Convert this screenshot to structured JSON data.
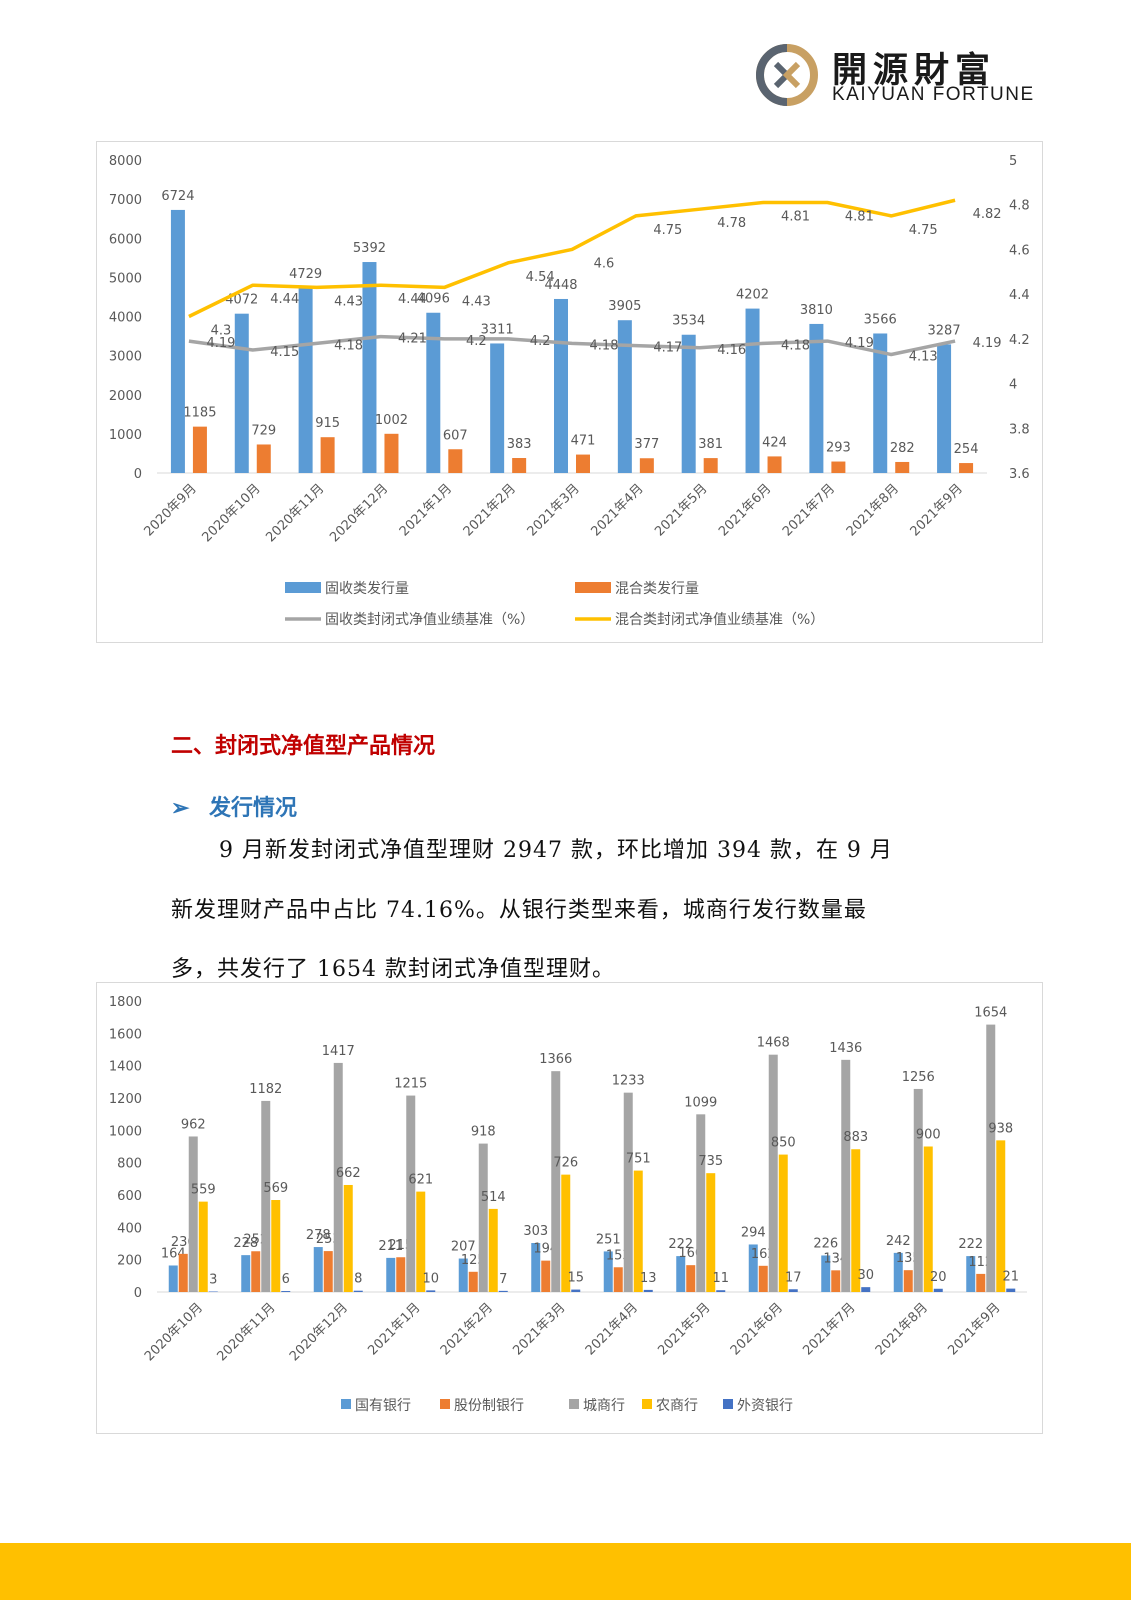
{
  "header": {
    "logo_cn": "開源財富",
    "logo_en": "KAIYUAN FORTUNE",
    "colors": {
      "logo_gold": "#c8a063",
      "logo_gray": "#5a6470"
    }
  },
  "section": {
    "title": "二、封闭式净值型产品情况",
    "subtitle": "发行情况",
    "paragraph_lines": [
      "9 月新发封闭式净值型理财 2947 款，环比增加 394 款，在 9 月",
      "新发理财产品中占比 74.16%。从银行类型来看，城商行发行数量最",
      "多，共发行了 1654 款封闭式净值型理财。"
    ]
  },
  "chart_data": [
    {
      "type": "bar",
      "combo_lines": true,
      "categories": [
        "2020年9月",
        "2020年10月",
        "2020年11月",
        "2020年12月",
        "2021年1月",
        "2021年2月",
        "2021年3月",
        "2021年4月",
        "2021年5月",
        "2021年6月",
        "2021年7月",
        "2021年8月",
        "2021年9月"
      ],
      "series": [
        {
          "name": "固收类发行量",
          "kind": "bar",
          "axis": "left",
          "color": "#5b9bd5",
          "values": [
            6724,
            4072,
            4729,
            5392,
            4096,
            3311,
            4448,
            3905,
            3534,
            4202,
            3810,
            3566,
            3287
          ]
        },
        {
          "name": "混合类发行量",
          "kind": "bar",
          "axis": "left",
          "color": "#ed7d31",
          "values": [
            1185,
            729,
            915,
            1002,
            607,
            383,
            471,
            377,
            381,
            424,
            293,
            282,
            254
          ]
        },
        {
          "name": "固收类封闭式净值业绩基准（%）",
          "kind": "line",
          "axis": "right",
          "color": "#a5a5a5",
          "values": [
            4.19,
            4.15,
            4.18,
            4.21,
            4.2,
            4.2,
            4.18,
            4.17,
            4.16,
            4.18,
            4.19,
            4.13,
            4.19
          ]
        },
        {
          "name": "混合类封闭式净值业绩基准（%）",
          "kind": "line",
          "axis": "right",
          "color": "#ffc000",
          "values": [
            4.3,
            4.44,
            4.43,
            4.44,
            4.43,
            4.54,
            4.6,
            4.75,
            4.78,
            4.81,
            4.81,
            4.75,
            4.82
          ]
        }
      ],
      "ylim": [
        0,
        8000
      ],
      "yticks": [
        "0",
        "1000",
        "2000",
        "3000",
        "4000",
        "5000",
        "6000",
        "7000",
        "8000"
      ],
      "y2lim": [
        3.6,
        5
      ],
      "y2ticks": [
        "3.6",
        "3.8",
        "4",
        "4.2",
        "4.4",
        "4.6",
        "4.8",
        "5"
      ],
      "legend": "bottom",
      "grid": false
    },
    {
      "type": "bar",
      "categories": [
        "2020年10月",
        "2020年11月",
        "2020年12月",
        "2021年1月",
        "2021年2月",
        "2021年3月",
        "2021年4月",
        "2021年5月",
        "2021年6月",
        "2021年7月",
        "2021年8月",
        "2021年9月"
      ],
      "series": [
        {
          "name": "国有银行",
          "color": "#5b9bd5",
          "values": [
            164,
            228,
            278,
            211,
            207,
            303,
            251,
            222,
            294,
            226,
            242,
            222
          ]
        },
        {
          "name": "股份制银行",
          "color": "#ed7d31",
          "values": [
            236,
            252,
            253,
            215,
            125,
            194,
            153,
            166,
            162,
            134,
            135,
            112
          ]
        },
        {
          "name": "城商行",
          "color": "#a5a5a5",
          "values": [
            962,
            1182,
            1417,
            1215,
            918,
            1366,
            1233,
            1099,
            1468,
            1436,
            1256,
            1654
          ]
        },
        {
          "name": "农商行",
          "color": "#ffc000",
          "values": [
            559,
            569,
            662,
            621,
            514,
            726,
            751,
            735,
            850,
            883,
            900,
            938
          ]
        },
        {
          "name": "外资银行",
          "color": "#4472c4",
          "values": [
            3,
            6,
            8,
            10,
            7,
            15,
            13,
            11,
            17,
            30,
            20,
            21
          ]
        }
      ],
      "ylim": [
        0,
        1800
      ],
      "yticks": [
        "0",
        "200",
        "400",
        "600",
        "800",
        "1000",
        "1200",
        "1400",
        "1600",
        "1800"
      ],
      "legend": "bottom",
      "grid": false
    }
  ],
  "footer": {
    "bar_color": "#ffc000"
  }
}
